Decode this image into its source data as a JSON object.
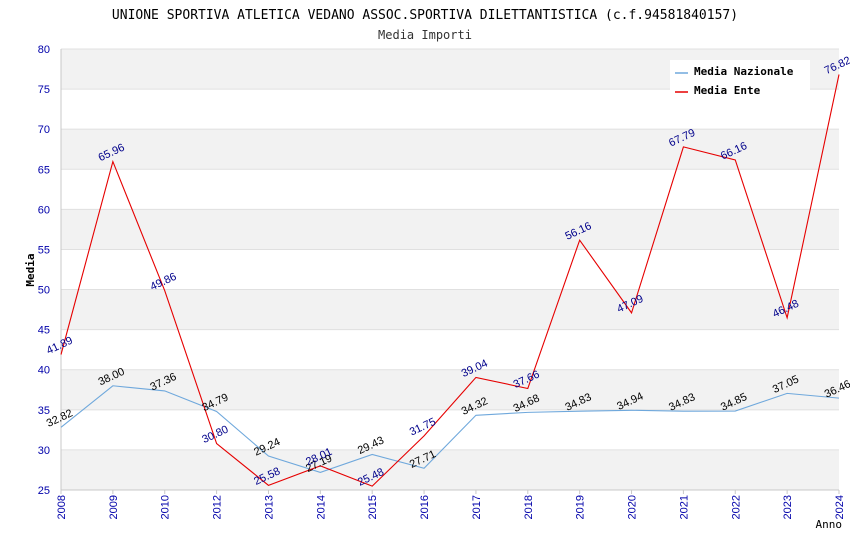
{
  "chart_data": {
    "type": "line",
    "title": "UNIONE SPORTIVA ATLETICA VEDANO ASSOC.SPORTIVA DILETTANTISTICA (c.f.94581840157)",
    "subtitle": "Media Importi",
    "xlabel": "Anno",
    "ylabel": "Media",
    "ylim": [
      25,
      80
    ],
    "yticks": [
      25,
      30,
      35,
      40,
      45,
      50,
      55,
      60,
      65,
      70,
      75,
      80
    ],
    "categories": [
      "2008",
      "2009",
      "2010",
      "2012",
      "2013",
      "2014",
      "2015",
      "2016",
      "2017",
      "2018",
      "2019",
      "2020",
      "2021",
      "2022",
      "2023",
      "2024"
    ],
    "series": [
      {
        "name": "Media Nazionale",
        "color": "#6fa8dc",
        "values": [
          32.82,
          38.0,
          37.36,
          34.79,
          29.24,
          27.19,
          29.43,
          27.71,
          34.32,
          34.68,
          34.83,
          34.94,
          34.83,
          34.85,
          37.05,
          36.46
        ],
        "labels": [
          "32.82",
          "38.00",
          "37.36",
          "34.79",
          "29.24",
          "27.19",
          "29.43",
          "27.71",
          "34.32",
          "34.68",
          "34.83",
          "34.94",
          "34.83",
          "34.85",
          "37.05",
          "36.46"
        ]
      },
      {
        "name": "Media Ente",
        "color": "#e60000",
        "values": [
          41.89,
          65.96,
          49.86,
          30.8,
          25.58,
          28.01,
          25.48,
          31.75,
          39.04,
          37.66,
          56.16,
          47.09,
          67.79,
          66.16,
          46.48,
          76.82
        ],
        "labels": [
          "41.89",
          "65.96",
          "49.86",
          "30.80",
          "25.58",
          "28.01",
          "25.48",
          "31.75",
          "39.04",
          "37.66",
          "56.16",
          "47.09",
          "67.79",
          "66.16",
          "46.48",
          "76.82"
        ]
      }
    ],
    "legend_position": "top-right",
    "grid": true
  }
}
